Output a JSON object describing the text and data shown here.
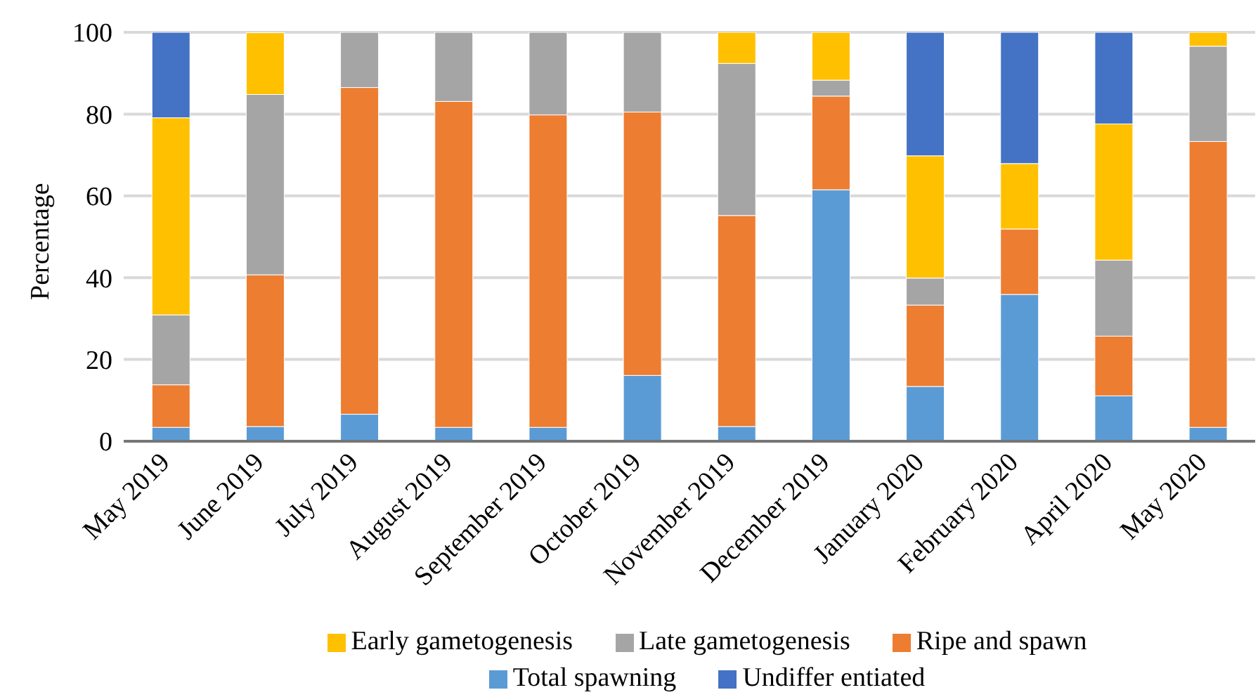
{
  "chart_data": {
    "type": "bar",
    "stacked": true,
    "ylabel": "Percentage",
    "categories": [
      "May 2019",
      "June 2019",
      "July 2019",
      "August 2019",
      "September 2019",
      "October 2019",
      "November 2019",
      "December 2019",
      "January 2020",
      "February 2020",
      "April 2020",
      "May 2020"
    ],
    "series": [
      {
        "name": "Total spawning",
        "color": "#5b9bd5",
        "values": [
          3.4,
          3.6,
          6.6,
          3.4,
          3.4,
          16.1,
          3.6,
          61.5,
          13.4,
          35.9,
          11.1,
          3.4
        ]
      },
      {
        "name": "Ripe and spawn",
        "color": "#ed7d31",
        "values": [
          10.4,
          37.1,
          79.9,
          79.7,
          76.4,
          64.4,
          51.6,
          22.9,
          19.9,
          16,
          14.6,
          69.9
        ]
      },
      {
        "name": "Late gametogenesis",
        "color": "#a5a5a5",
        "values": [
          17.1,
          44.1,
          13.5,
          16.9,
          20.2,
          19.5,
          37.2,
          3.9,
          6.6,
          0,
          18.6,
          23.3
        ]
      },
      {
        "name": "Early gametogenesis",
        "color": "#ffc000",
        "values": [
          48.2,
          15.1,
          0,
          0,
          0,
          0,
          7.6,
          11.7,
          29.9,
          16,
          33.3,
          3.5
        ]
      },
      {
        "name": "Undiffer entiated",
        "color": "#4472c4",
        "values": [
          20.9,
          0,
          0,
          0,
          0,
          0,
          0,
          0,
          30.2,
          32.1,
          22.4,
          0
        ]
      }
    ],
    "ylim": [
      0,
      100
    ],
    "yticks": [
      0,
      20,
      40,
      60,
      80,
      100
    ],
    "grid": "y",
    "legend": "bottom"
  }
}
